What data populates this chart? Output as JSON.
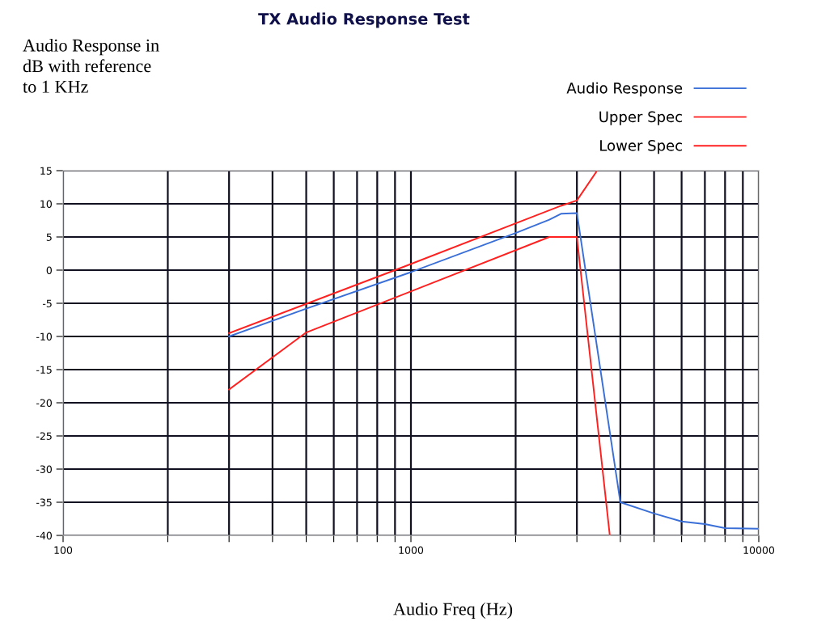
{
  "chart_data": {
    "type": "line",
    "title": "TX Audio Response Test",
    "ylabel": "Audio Response in\ndB with reference\nto 1 KHz",
    "xlabel": "Audio Freq (Hz)",
    "log": "x",
    "xlim": [
      100,
      10000
    ],
    "ylim": [
      -40,
      15
    ],
    "xticks": [
      100,
      {
        "value": 200,
        "label": null
      },
      {
        "value": 300,
        "label": null
      },
      {
        "value": 400,
        "label": null
      },
      {
        "value": 500,
        "label": null
      },
      {
        "value": 600,
        "label": null
      },
      {
        "value": 700,
        "label": null
      },
      {
        "value": 800,
        "label": null
      },
      {
        "value": 900,
        "label": null
      },
      1000,
      {
        "value": 2000,
        "label": null
      },
      {
        "value": 3000,
        "label": null
      },
      {
        "value": 4000,
        "label": null
      },
      {
        "value": 5000,
        "label": null
      },
      {
        "value": 6000,
        "label": null
      },
      {
        "value": 7000,
        "label": null
      },
      {
        "value": 8000,
        "label": null
      },
      {
        "value": 9000,
        "label": null
      },
      10000
    ],
    "yticks": [
      15,
      10,
      5,
      0,
      -5,
      -10,
      -15,
      -20,
      -25,
      -30,
      -35,
      -40
    ],
    "grid": true,
    "legend": "top right",
    "series": [
      {
        "name": "Audio Response",
        "color": "#3a6fd8",
        "x": [
          300,
          500,
          1000,
          2000,
          2500,
          2700,
          3000,
          4000,
          5000,
          6000,
          7000,
          8000,
          10000
        ],
        "values": [
          -10,
          -5.8,
          -0.3,
          5.6,
          7.6,
          8.5,
          8.6,
          -35,
          -36.7,
          -37.9,
          -38.3,
          -38.9,
          -39
        ]
      },
      {
        "name": "Upper Spec",
        "color": "#ff2020",
        "x": [
          300,
          900,
          2700,
          3000,
          3430
        ],
        "values": [
          -9.5,
          0,
          9.7,
          10.5,
          15
        ]
      },
      {
        "name": "Lower Spec",
        "color": "#ff2020",
        "x": [
          300,
          500,
          2500,
          3000,
          3730
        ],
        "values": [
          -18,
          -9.4,
          5,
          5,
          -40
        ]
      }
    ]
  }
}
